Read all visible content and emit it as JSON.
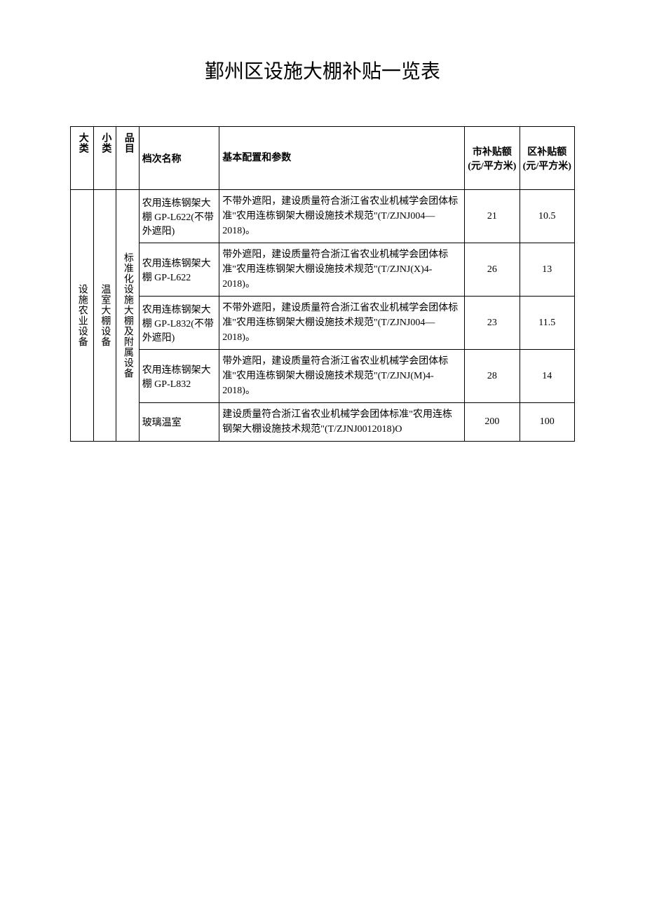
{
  "title": "鄞州区设施大棚补贴一览表",
  "table": {
    "headers": {
      "category1": "大类",
      "category2": "小类",
      "category3": "品目",
      "name": "档次名称",
      "config": "基本配置和参数",
      "city_subsidy": "市补贴额(元/平方米)",
      "district_subsidy": "区补贴额(元/平方米)"
    },
    "merged": {
      "category1": "设施农业设备",
      "category2": "温室大棚设备",
      "category3": "标准化设施大棚及附属设备"
    },
    "rows": [
      {
        "name": "农用连栋钢架大棚 GP-L622(不带外遮阳)",
        "config": "不带外遮阳，建设质量符合浙江省农业机械学会团体标准\"农用连栋钢架大棚设施技术规范\"(T/ZJNJ004—2018)。",
        "city_subsidy": "21",
        "district_subsidy": "10.5"
      },
      {
        "name": "农用连栋钢架大棚 GP-L622",
        "config": "带外遮阳，建设质量符合浙江省农业机械学会团体标准\"农用连栋钢架大棚设施技术规范\"(T/ZJNJ(X)4-2018)。",
        "city_subsidy": "26",
        "district_subsidy": "13"
      },
      {
        "name": "农用连栋钢架大棚 GP-L832(不带外遮阳)",
        "config": "不带外遮阳，建设质量符合浙江省农业机械学会团体标准\"农用连栋钢架大棚设施技术规范\"(T/ZJNJ004—2018)。",
        "city_subsidy": "23",
        "district_subsidy": "11.5"
      },
      {
        "name": "农用连栋钢架大棚 GP-L832",
        "config": "带外遮阳，建设质量符合浙江省农业机械学会团体标准\"农用连栋钢架大棚设施技术规范\"(T/ZJNJ(M)4-2018)。",
        "city_subsidy": "28",
        "district_subsidy": "14"
      },
      {
        "name": "玻璃温室",
        "config": "建设质量符合浙江省农业机械学会团体标准\"农用连栋钢架大棚设施技术规范\"(T/ZJNJ0012018)O",
        "city_subsidy": "200",
        "district_subsidy": "100"
      }
    ]
  }
}
